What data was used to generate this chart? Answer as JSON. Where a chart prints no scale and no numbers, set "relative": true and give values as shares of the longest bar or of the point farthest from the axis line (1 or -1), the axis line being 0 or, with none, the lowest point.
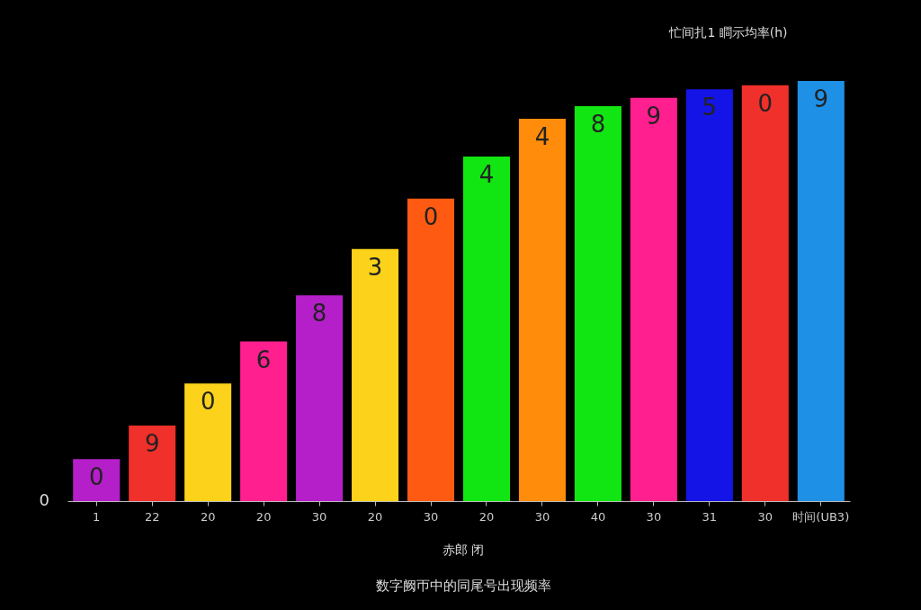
{
  "chart_data": {
    "type": "bar",
    "relative": true,
    "categories": [
      "1",
      "22",
      "20",
      "20",
      "30",
      "20",
      "30",
      "20",
      "30",
      "40",
      "30",
      "31",
      "30",
      "时间(UB3)"
    ],
    "values": [
      0.1,
      0.18,
      0.28,
      0.38,
      0.49,
      0.6,
      0.72,
      0.82,
      0.91,
      0.94,
      0.96,
      0.98,
      0.99,
      1
    ],
    "colors": [
      "#b51fc9",
      "#f0302a",
      "#fcd31a",
      "#ff1f8f",
      "#b51fc9",
      "#fcd31a",
      "#ff5a12",
      "#12e612",
      "#ff8c0a",
      "#12e612",
      "#ff1f8f",
      "#1414e6",
      "#f0302a",
      "#1e90e6"
    ],
    "annotations": [
      "0",
      "忙间扎1 瞷示均率(h)",
      "赤郎  闭",
      "数字阙帀中的同尾号出现频率",
      "0",
      "9",
      "0",
      "6",
      "8",
      "3",
      "0",
      "4",
      "4",
      "8",
      "9",
      "5",
      "0",
      "9"
    ],
    "grid": false
  }
}
